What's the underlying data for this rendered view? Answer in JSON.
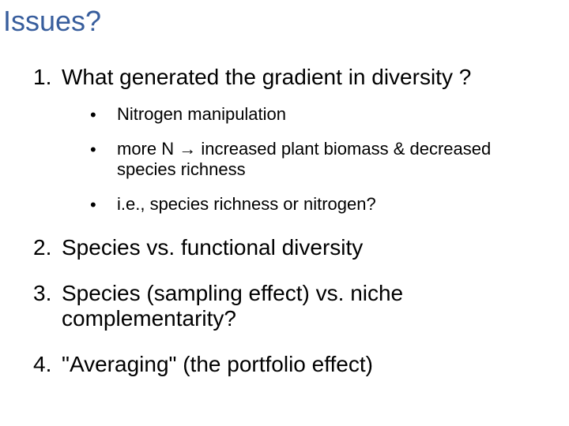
{
  "title": {
    "text": "Issues?",
    "color": "#385e9d",
    "fontsize": 36,
    "weight": "400"
  },
  "body": {
    "color": "#000000",
    "num_fontsize": 28,
    "sub_fontsize": 22,
    "items": [
      {
        "num": "1.",
        "text": "What generated the gradient in diversity ?",
        "subs": [
          {
            "bullet": "•",
            "text": "Nitrogen manipulation"
          },
          {
            "bullet": "•",
            "text": "more N → increased plant biomass & decreased species richness"
          },
          {
            "bullet": "•",
            "text": "i.e., species richness or nitrogen?"
          }
        ]
      },
      {
        "num": "2.",
        "text": "Species vs. functional diversity",
        "subs": []
      },
      {
        "num": "3.",
        "text": "Species (sampling effect) vs. niche complementarity?",
        "subs": []
      },
      {
        "num": "4.",
        "text": "\"Averaging\" (the portfolio effect)",
        "subs": []
      }
    ]
  }
}
